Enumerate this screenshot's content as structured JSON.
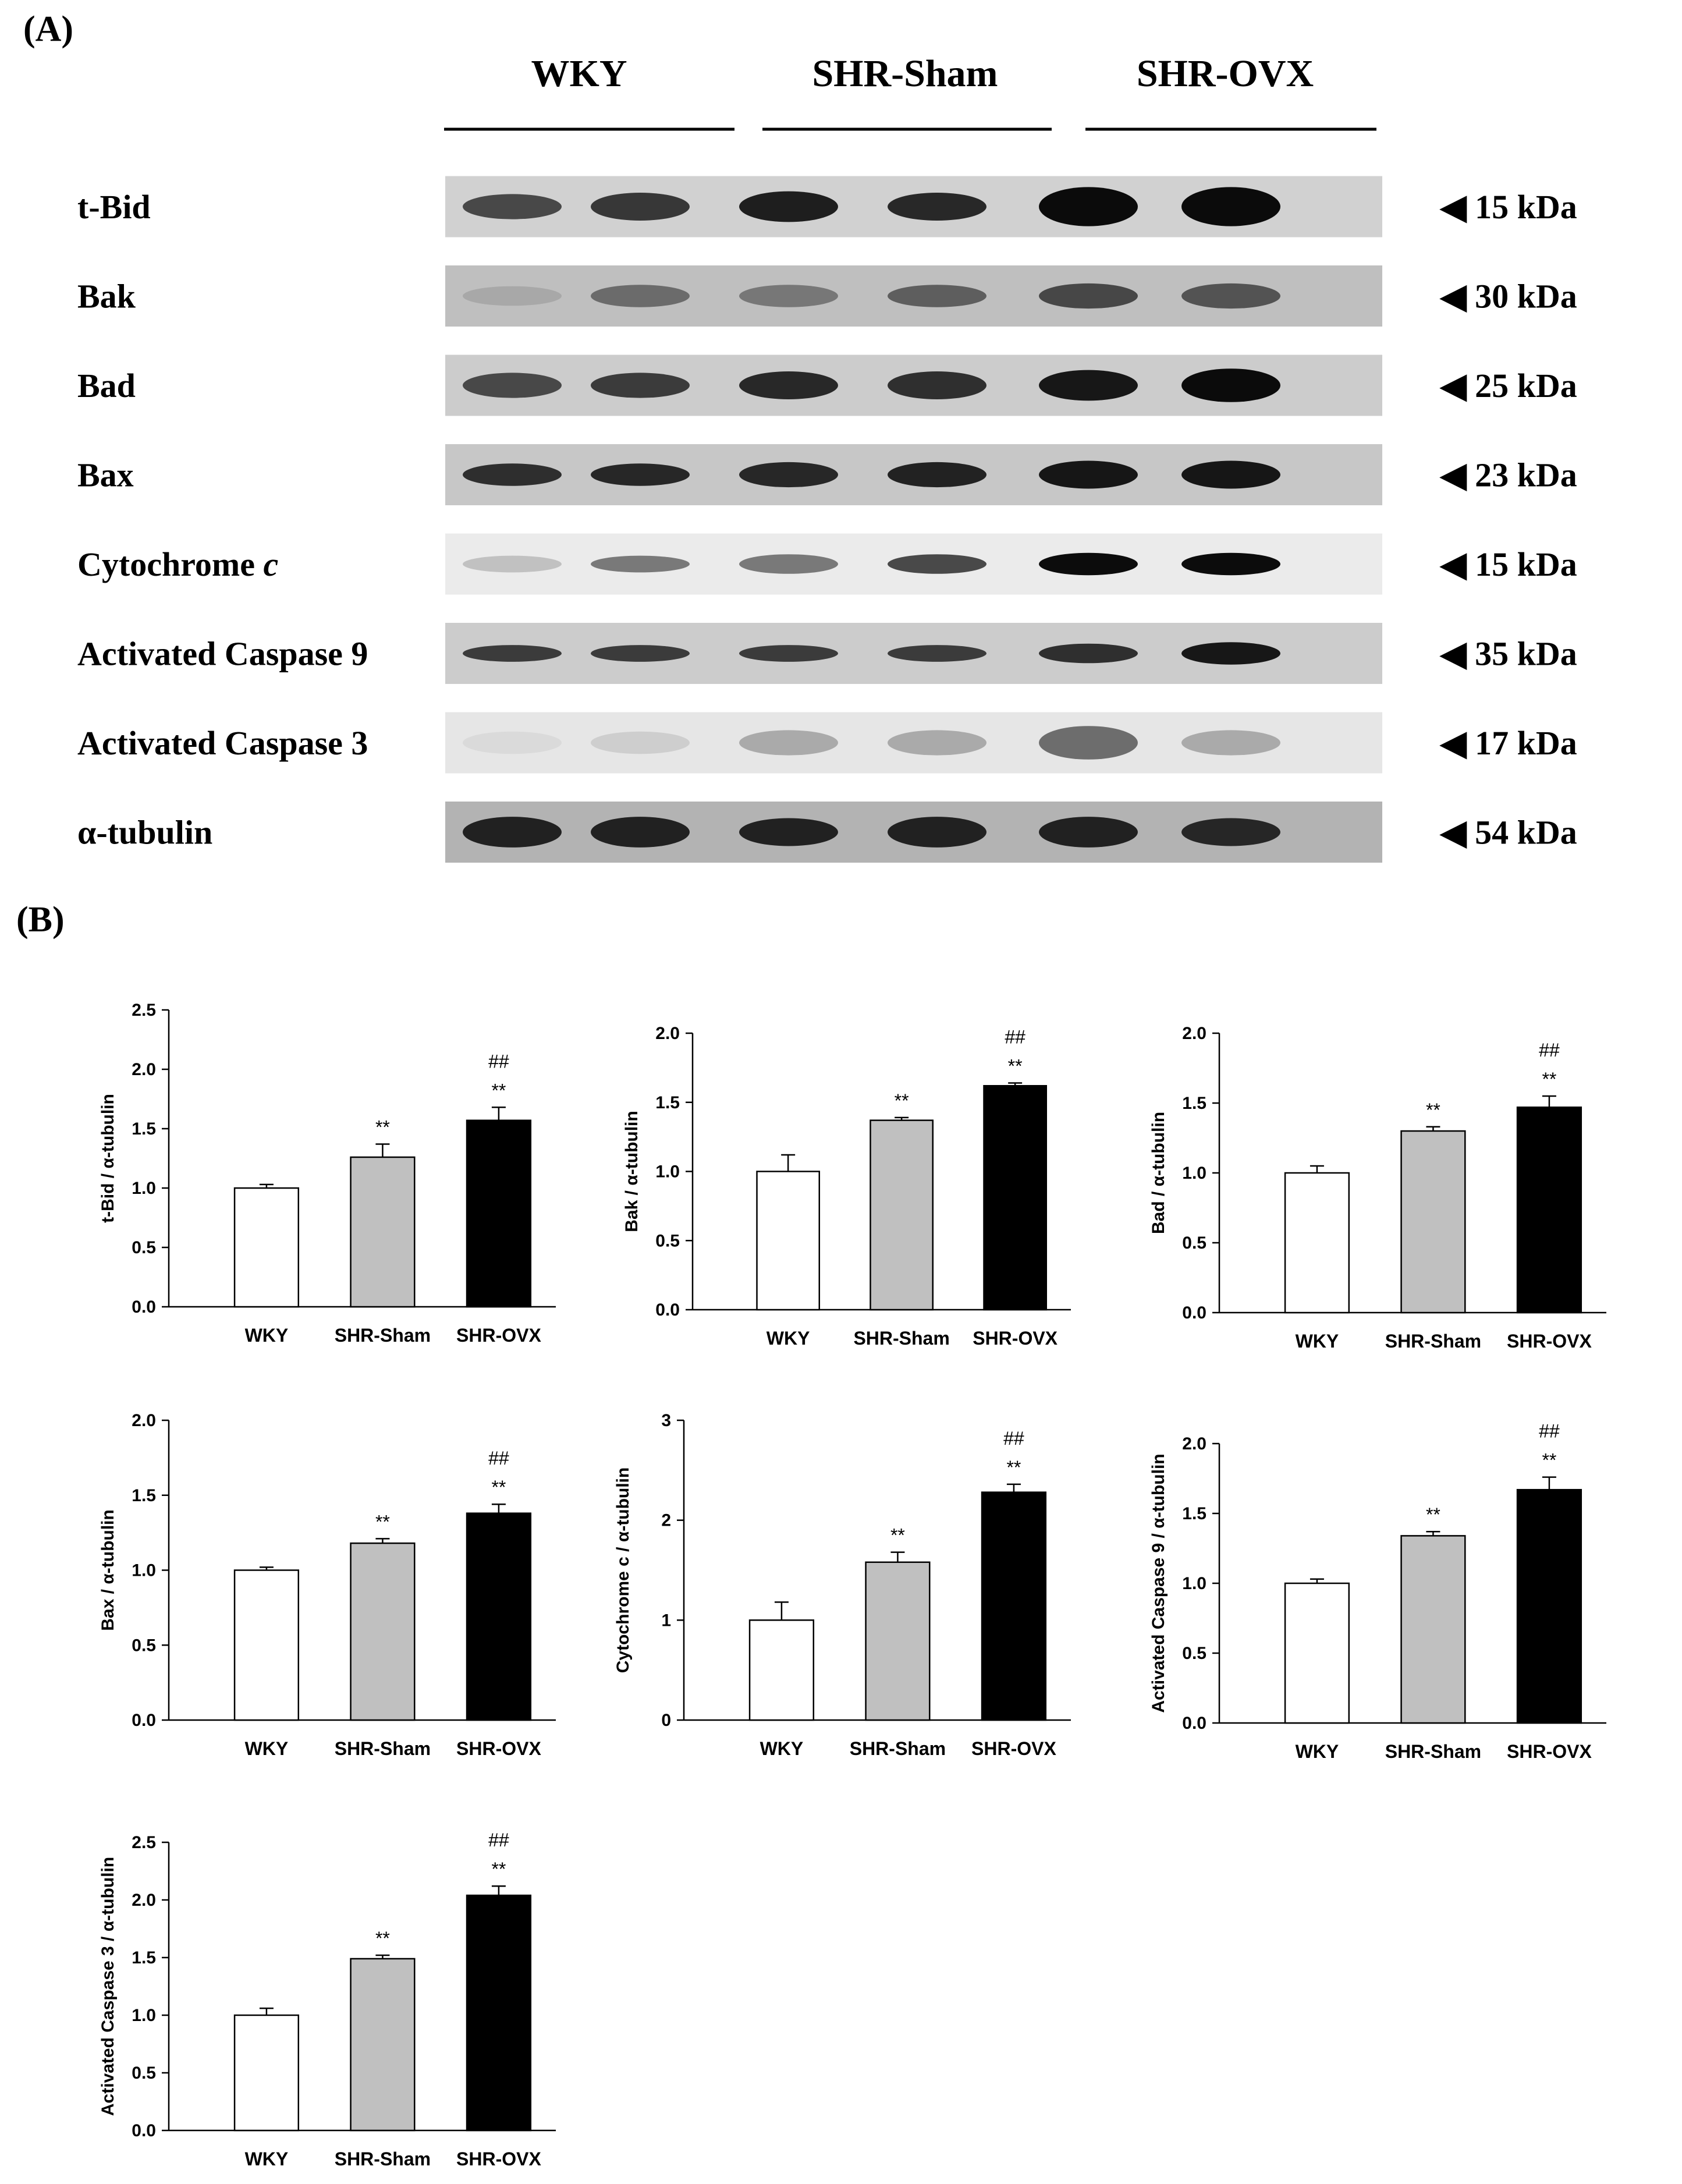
{
  "panel_a": {
    "label": "(A)",
    "groups": [
      "WKY",
      "SHR-Sham",
      "SHR-OVX"
    ],
    "rows": [
      {
        "label": "t-Bid",
        "label_italic": "",
        "size": "◀ 15 kDa",
        "intensity": [
          0.75,
          0.82,
          0.92,
          0.88,
          1.0,
          1.0
        ],
        "thickness": [
          0.45,
          0.5,
          0.55,
          0.5,
          0.7,
          0.7
        ],
        "bg": 0.18
      },
      {
        "label": "Bak",
        "label_italic": "",
        "size": "◀ 30 kDa",
        "intensity": [
          0.35,
          0.6,
          0.55,
          0.65,
          0.75,
          0.7
        ],
        "thickness": [
          0.35,
          0.4,
          0.4,
          0.4,
          0.45,
          0.45
        ],
        "bg": 0.25
      },
      {
        "label": "Bad",
        "label_italic": "",
        "size": "◀ 25 kDa",
        "intensity": [
          0.75,
          0.8,
          0.88,
          0.85,
          0.95,
          1.0
        ],
        "thickness": [
          0.45,
          0.45,
          0.5,
          0.5,
          0.55,
          0.6
        ],
        "bg": 0.2
      },
      {
        "label": "Bax",
        "label_italic": "",
        "size": "◀ 23 kDa",
        "intensity": [
          0.85,
          0.88,
          0.88,
          0.9,
          0.95,
          0.95
        ],
        "thickness": [
          0.4,
          0.4,
          0.45,
          0.45,
          0.5,
          0.5
        ],
        "bg": 0.22
      },
      {
        "label": "Cytochrome ",
        "label_italic": "c",
        "size": "◀ 15 kDa",
        "intensity": [
          0.25,
          0.55,
          0.55,
          0.75,
          1.0,
          1.0
        ],
        "thickness": [
          0.3,
          0.3,
          0.35,
          0.35,
          0.4,
          0.4
        ],
        "bg": 0.08
      },
      {
        "label": "Activated Caspase 9",
        "label_italic": "",
        "size": "◀ 35 kDa",
        "intensity": [
          0.8,
          0.8,
          0.8,
          0.8,
          0.85,
          0.95
        ],
        "thickness": [
          0.3,
          0.3,
          0.3,
          0.3,
          0.35,
          0.4
        ],
        "bg": 0.2
      },
      {
        "label": "Activated Caspase 3",
        "label_italic": "",
        "size": "◀ 17 kDa",
        "intensity": [
          0.15,
          0.2,
          0.35,
          0.35,
          0.6,
          0.35
        ],
        "thickness": [
          0.4,
          0.4,
          0.45,
          0.45,
          0.6,
          0.45
        ],
        "bg": 0.1
      },
      {
        "label": "α-tubulin",
        "label_italic": "",
        "size": "◀ 54 kDa",
        "intensity": [
          0.9,
          0.9,
          0.9,
          0.9,
          0.9,
          0.88
        ],
        "thickness": [
          0.55,
          0.55,
          0.5,
          0.55,
          0.55,
          0.5
        ],
        "bg": 0.3
      }
    ]
  },
  "panel_b": {
    "label": "(B)"
  },
  "chart_data": [
    {
      "type": "bar",
      "ylabel": "t-Bid / α-tubulin",
      "categories": [
        "WKY",
        "SHR-Sham",
        "SHR-OVX"
      ],
      "values": [
        1.0,
        1.26,
        1.57
      ],
      "errors": [
        0.03,
        0.11,
        0.11
      ],
      "ylim": [
        0,
        2.5
      ],
      "yticks": [
        "0.0",
        "0.5",
        "1.0",
        "1.5",
        "2.0",
        "2.5"
      ],
      "stars": [
        "",
        "**",
        "**"
      ],
      "hashes": [
        "",
        "",
        "##"
      ],
      "colors": [
        "#ffffff",
        "#c0c0c0",
        "#000000"
      ]
    },
    {
      "type": "bar",
      "ylabel": "Bak / α-tubulin",
      "categories": [
        "WKY",
        "SHR-Sham",
        "SHR-OVX"
      ],
      "values": [
        1.0,
        1.37,
        1.62
      ],
      "errors": [
        0.12,
        0.02,
        0.02
      ],
      "ylim": [
        0,
        2.0
      ],
      "yticks": [
        "0.0",
        "0.5",
        "1.0",
        "1.5",
        "2.0"
      ],
      "stars": [
        "",
        "**",
        "**"
      ],
      "hashes": [
        "",
        "",
        "##"
      ],
      "colors": [
        "#ffffff",
        "#c0c0c0",
        "#000000"
      ]
    },
    {
      "type": "bar",
      "ylabel": "Bad / α-tubulin",
      "categories": [
        "WKY",
        "SHR-Sham",
        "SHR-OVX"
      ],
      "values": [
        1.0,
        1.3,
        1.47
      ],
      "errors": [
        0.05,
        0.03,
        0.08
      ],
      "ylim": [
        0,
        2.0
      ],
      "yticks": [
        "0.0",
        "0.5",
        "1.0",
        "1.5",
        "2.0"
      ],
      "stars": [
        "",
        "**",
        "**"
      ],
      "hashes": [
        "",
        "",
        "##"
      ],
      "colors": [
        "#ffffff",
        "#c0c0c0",
        "#000000"
      ]
    },
    {
      "type": "bar",
      "ylabel": "Bax / α-tubulin",
      "categories": [
        "WKY",
        "SHR-Sham",
        "SHR-OVX"
      ],
      "values": [
        1.0,
        1.18,
        1.38
      ],
      "errors": [
        0.02,
        0.03,
        0.06
      ],
      "ylim": [
        0,
        2.0
      ],
      "yticks": [
        "0.0",
        "0.5",
        "1.0",
        "1.5",
        "2.0"
      ],
      "stars": [
        "",
        "**",
        "**"
      ],
      "hashes": [
        "",
        "",
        "##"
      ],
      "colors": [
        "#ffffff",
        "#c0c0c0",
        "#000000"
      ]
    },
    {
      "type": "bar",
      "ylabel": "Cytochrome c / α-tubulin",
      "categories": [
        "WKY",
        "SHR-Sham",
        "SHR-OVX"
      ],
      "values": [
        1.0,
        1.58,
        2.28
      ],
      "errors": [
        0.18,
        0.1,
        0.08
      ],
      "ylim": [
        0,
        3
      ],
      "yticks": [
        "0",
        "1",
        "2",
        "3"
      ],
      "stars": [
        "",
        "**",
        "**"
      ],
      "hashes": [
        "",
        "",
        "##"
      ],
      "colors": [
        "#ffffff",
        "#c0c0c0",
        "#000000"
      ]
    },
    {
      "type": "bar",
      "ylabel": "Activated Caspase 9 / α-tubulin",
      "categories": [
        "WKY",
        "SHR-Sham",
        "SHR-OVX"
      ],
      "values": [
        1.0,
        1.34,
        1.67
      ],
      "errors": [
        0.03,
        0.03,
        0.09
      ],
      "ylim": [
        0,
        2.0
      ],
      "yticks": [
        "0.0",
        "0.5",
        "1.0",
        "1.5",
        "2.0"
      ],
      "stars": [
        "",
        "**",
        "**"
      ],
      "hashes": [
        "",
        "",
        "##"
      ],
      "colors": [
        "#ffffff",
        "#c0c0c0",
        "#000000"
      ]
    },
    {
      "type": "bar",
      "ylabel": "Activated Caspase 3 / α-tubulin",
      "categories": [
        "WKY",
        "SHR-Sham",
        "SHR-OVX"
      ],
      "values": [
        1.0,
        1.49,
        2.04
      ],
      "errors": [
        0.06,
        0.03,
        0.08
      ],
      "ylim": [
        0,
        2.5
      ],
      "yticks": [
        "0.0",
        "0.5",
        "1.0",
        "1.5",
        "2.0",
        "2.5"
      ],
      "stars": [
        "",
        "**",
        "**"
      ],
      "hashes": [
        "",
        "",
        "##"
      ],
      "colors": [
        "#ffffff",
        "#c0c0c0",
        "#000000"
      ]
    }
  ]
}
